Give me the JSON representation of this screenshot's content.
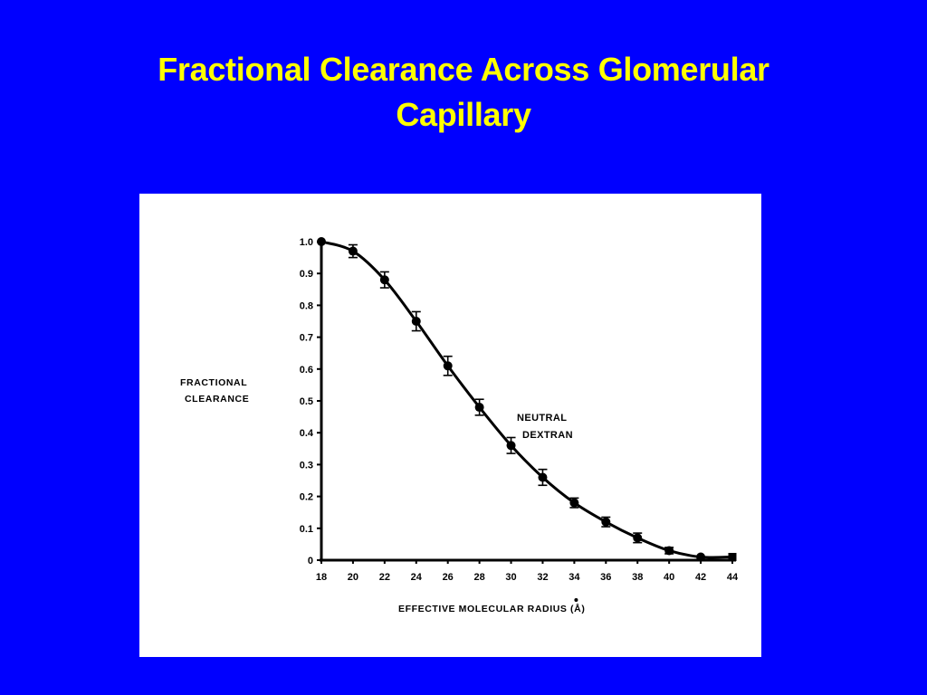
{
  "slide": {
    "title_line1": "Fractional Clearance Across Glomerular",
    "title_line2": "Capillary",
    "background_color": "#0000ff",
    "title_color": "#ffff00"
  },
  "chart_data": {
    "type": "line",
    "title": "",
    "xlabel": "EFFECTIVE MOLECULAR RADIUS (Å)",
    "ylabel_line1": "FRACTIONAL",
    "ylabel_line2": "CLEARANCE",
    "xlim": [
      18,
      44
    ],
    "ylim": [
      0,
      1.0
    ],
    "x_ticks": [
      18,
      20,
      22,
      24,
      26,
      28,
      30,
      32,
      34,
      36,
      38,
      40,
      42,
      44
    ],
    "x_tick_labels": [
      "18",
      "20",
      "22",
      "24",
      "26",
      "28",
      "30",
      "32",
      "34",
      "36",
      "38",
      "40",
      "42",
      "44"
    ],
    "y_ticks": [
      0,
      0.1,
      0.2,
      0.3,
      0.4,
      0.5,
      0.6,
      0.7,
      0.8,
      0.9,
      1.0
    ],
    "y_tick_labels": [
      "0",
      "0.1",
      "0.2",
      "0.3",
      "0.4",
      "0.5",
      "0.6",
      "0.7",
      "0.8",
      "0.9",
      "1.0"
    ],
    "grid": false,
    "legend": "none",
    "annotation_line1": "NEUTRAL",
    "annotation_line2": "DEXTRAN",
    "series": [
      {
        "name": "NEUTRAL DEXTRAN",
        "x": [
          18,
          20,
          22,
          24,
          26,
          28,
          30,
          32,
          34,
          36,
          38,
          40,
          42,
          44
        ],
        "values": [
          1.0,
          0.97,
          0.88,
          0.75,
          0.61,
          0.48,
          0.36,
          0.26,
          0.18,
          0.12,
          0.07,
          0.03,
          0.01,
          0.01
        ],
        "error": [
          0.005,
          0.02,
          0.025,
          0.03,
          0.03,
          0.025,
          0.025,
          0.025,
          0.015,
          0.015,
          0.015,
          0.01,
          0.005,
          0.005
        ]
      }
    ]
  }
}
